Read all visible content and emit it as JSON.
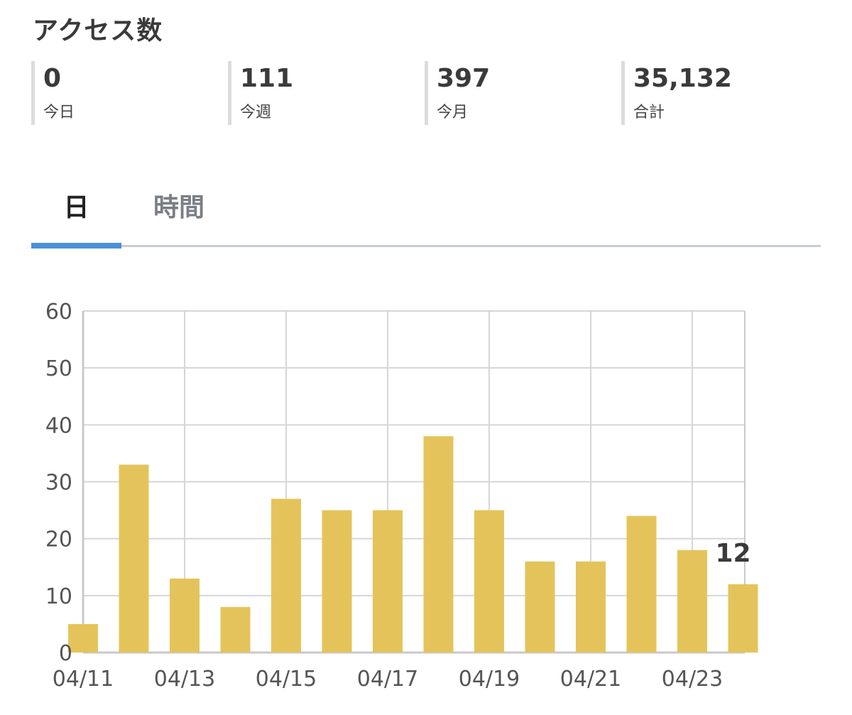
{
  "title": "アクセス数",
  "stats": [
    {
      "value": "0",
      "label": "今日"
    },
    {
      "value": "111",
      "label": "今週"
    },
    {
      "value": "397",
      "label": "今月"
    },
    {
      "value": "35,132",
      "label": "合計"
    }
  ],
  "tabs": [
    {
      "label": "日",
      "active": true
    },
    {
      "label": "時間",
      "active": false
    }
  ],
  "colors": {
    "bar": "#e4c45a",
    "grid": "#d6d6d6",
    "axis": "#c9c9c9",
    "tab_indicator": "#4a90d9"
  },
  "chart_data": {
    "type": "bar",
    "categories": [
      "04/11",
      "04/12",
      "04/13",
      "04/14",
      "04/15",
      "04/16",
      "04/17",
      "04/18",
      "04/19",
      "04/20",
      "04/21",
      "04/22",
      "04/23",
      "04/24"
    ],
    "values": [
      5,
      33,
      13,
      8,
      27,
      25,
      25,
      38,
      25,
      16,
      16,
      24,
      18,
      12
    ],
    "x_tick_labels": [
      "04/11",
      "04/13",
      "04/15",
      "04/17",
      "04/19",
      "04/21",
      "04/23"
    ],
    "y_ticks": [
      0,
      10,
      20,
      30,
      40,
      50,
      60
    ],
    "ylim": [
      0,
      60
    ],
    "grid": true,
    "annotations": [
      {
        "category": "04/24",
        "text": "12"
      }
    ]
  }
}
